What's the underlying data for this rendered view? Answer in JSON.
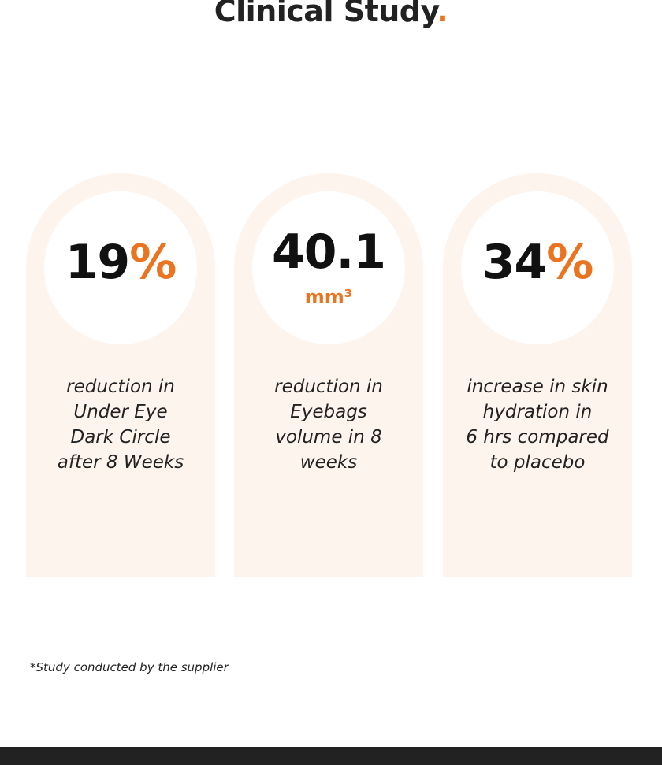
{
  "header": {
    "title": "Clinical Study",
    "dot": "."
  },
  "cards": [
    {
      "value": "19",
      "unit": "%",
      "description": [
        "reduction in",
        "Under Eye",
        "Dark Circle",
        "after 8 Weeks"
      ]
    },
    {
      "value": "40.1",
      "unit": "mm³",
      "description": [
        "reduction in",
        "Eyebags",
        "volume in 8",
        "weeks"
      ]
    },
    {
      "value": "34",
      "unit": "%",
      "description": [
        "increase in skin",
        "hydration in",
        "6 hrs compared",
        "to placebo"
      ]
    }
  ],
  "footnote": "*Study conducted by the supplier"
}
